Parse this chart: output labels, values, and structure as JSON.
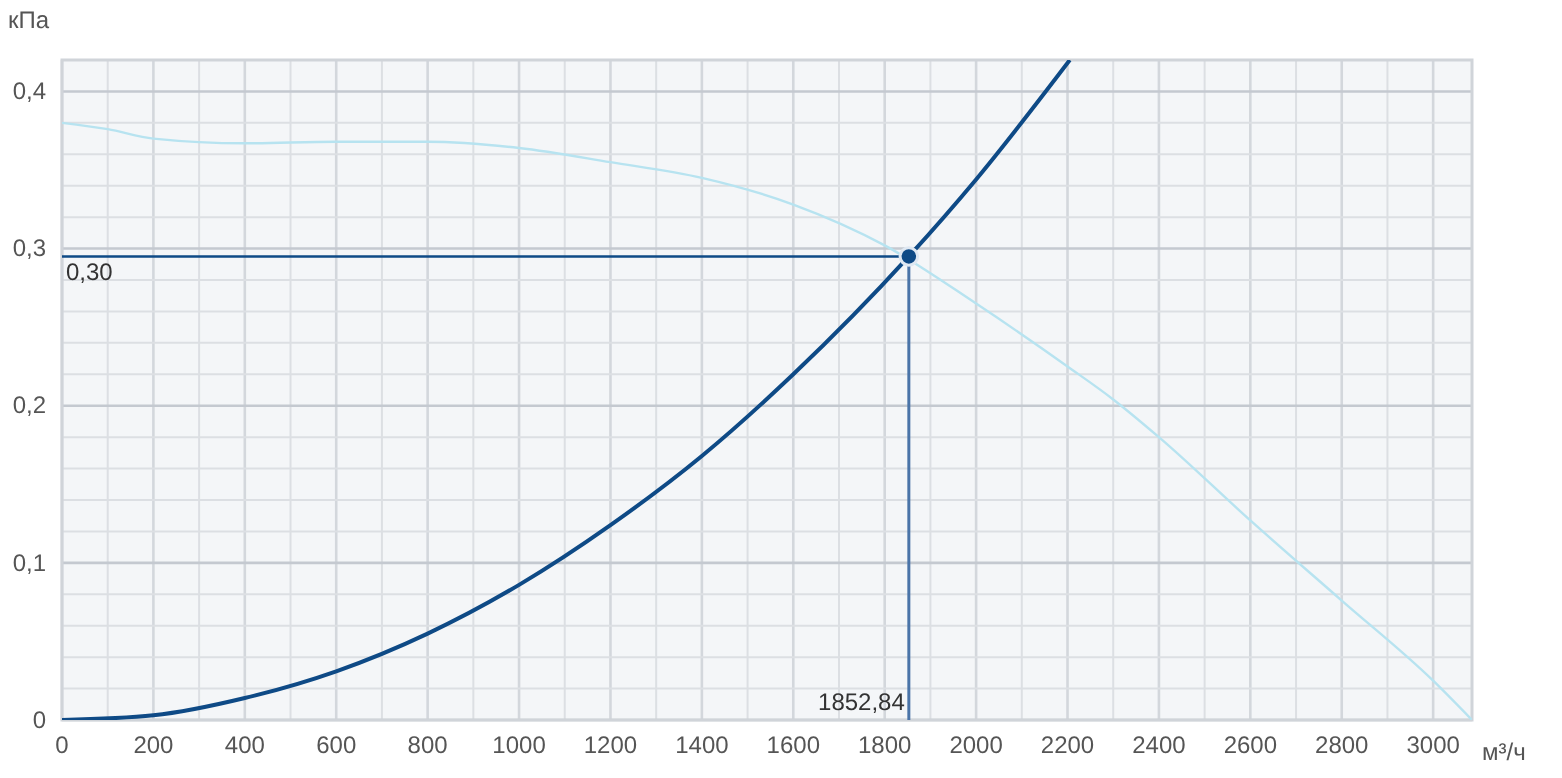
{
  "chart_data": {
    "type": "line",
    "xlabel": "м³/ч",
    "ylabel": "кПа",
    "xlim": [
      0,
      3085
    ],
    "ylim": [
      0,
      0.42
    ],
    "xticks": [
      0,
      200,
      400,
      600,
      800,
      1000,
      1200,
      1400,
      1600,
      1800,
      2000,
      2200,
      2400,
      2600,
      2800,
      3000
    ],
    "yticks": [
      0,
      {
        "value": 0.1,
        "label": "0,1"
      },
      {
        "value": 0.2,
        "label": "0,2"
      },
      {
        "value": 0.3,
        "label": "0,3"
      },
      {
        "value": 0.4,
        "label": "0,4"
      }
    ],
    "grid": true,
    "series": [
      {
        "color": "#b7e3f0",
        "x": [
          0,
          100,
          200,
          400,
          600,
          800,
          1000,
          1200,
          1400,
          1600,
          1800,
          2000,
          2200,
          2300,
          2400,
          2600,
          2800,
          3000,
          3085
        ],
        "values": [
          0.38,
          0.376,
          0.37,
          0.367,
          0.368,
          0.368,
          0.364,
          0.355,
          0.345,
          0.328,
          0.302,
          0.265,
          0.225,
          0.204,
          0.18,
          0.127,
          0.076,
          0.025,
          0
        ]
      },
      {
        "color": "#0e4a86",
        "x": [
          0,
          200,
          400,
          600,
          800,
          1000,
          1200,
          1400,
          1600,
          1852.84,
          2000,
          2205
        ],
        "values": [
          0,
          0.003,
          0.014,
          0.031,
          0.055,
          0.086,
          0.124,
          0.168,
          0.22,
          0.295,
          0.344,
          0.42
        ]
      },
      {
        "type": "scatter",
        "marker": "circle",
        "color": "#0e4a86",
        "x": [
          1852.84
        ],
        "values": [
          0.295
        ]
      }
    ],
    "ref_lines": [
      {
        "axis": "y",
        "value": 0.295,
        "label": "0,30",
        "color": "#0e4a86"
      },
      {
        "axis": "x",
        "value": 1852.84,
        "label": "1852,84",
        "color": "#4a74a8"
      }
    ]
  }
}
